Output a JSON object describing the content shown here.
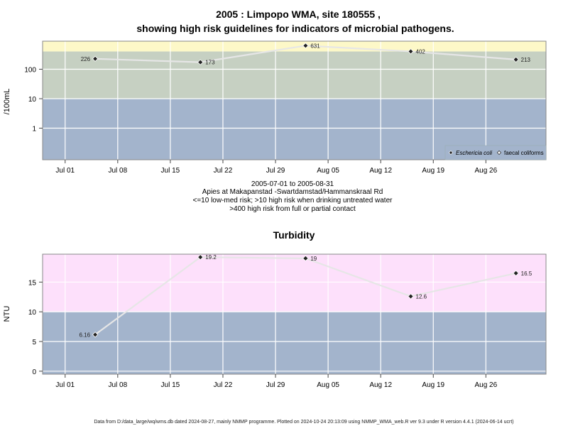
{
  "chart_data": [
    {
      "type": "line",
      "title": "2005 : Limpopo WMA, site 180555 ,",
      "subtitle": "showing high risk guidelines for indicators of microbial pathogens.",
      "ylabel": "/100mL",
      "y_scale": "log",
      "y_ticks": [
        1,
        10,
        100
      ],
      "x_ticks": [
        "Jul 01",
        "Jul 08",
        "Jul 15",
        "Jul 22",
        "Jul 29",
        "Aug 05",
        "Aug 12",
        "Aug 19",
        "Aug 26"
      ],
      "x_tick_dates": [
        "2005-07-01",
        "2005-07-08",
        "2005-07-15",
        "2005-07-22",
        "2005-07-29",
        "2005-08-05",
        "2005-08-12",
        "2005-08-19",
        "2005-08-26"
      ],
      "xlim": [
        "2005-06-28",
        "2005-09-03"
      ],
      "bands": [
        {
          "from": 0.05,
          "to": 10,
          "color": "#a3b4cc"
        },
        {
          "from": 10,
          "to": 400,
          "color": "#c6d0c2"
        },
        {
          "from": 400,
          "to": 900,
          "color": "#fdf8c8"
        }
      ],
      "series": [
        {
          "name": "Eschericia coli",
          "marker": "filled-diamond",
          "x": [
            "2005-07-05",
            "2005-07-19",
            "2005-08-02",
            "2005-08-16",
            "2005-08-30"
          ],
          "y": [
            226,
            173,
            631,
            402,
            213
          ],
          "labels": [
            "226",
            "173",
            "631",
            "402",
            "213"
          ]
        }
      ],
      "legend": {
        "placement": "bottom-right",
        "entries": [
          {
            "label": "Eschericia coli",
            "italic": true,
            "marker": "filled-diamond"
          },
          {
            "label": "faecal coliforms",
            "italic": false,
            "marker": "open-diamond"
          }
        ]
      },
      "notes": [
        "2005-07-01 to 2005-08-31",
        "Apies at Makapanstad -Swartdamstad/Hammanskraal Rd",
        "<=10 low-med risk; >10 high risk when drinking untreated water",
        ">400 high risk from full or partial contact"
      ]
    },
    {
      "type": "line",
      "title": "Turbidity",
      "ylabel": "NTU",
      "y_ticks": [
        0,
        5,
        10,
        15
      ],
      "ylim": [
        -0.5,
        19.7
      ],
      "x_ticks": [
        "Jul 01",
        "Jul 08",
        "Jul 15",
        "Jul 22",
        "Jul 29",
        "Aug 05",
        "Aug 12",
        "Aug 19",
        "Aug 26"
      ],
      "x_tick_dates": [
        "2005-07-01",
        "2005-07-08",
        "2005-07-15",
        "2005-07-22",
        "2005-07-29",
        "2005-08-05",
        "2005-08-12",
        "2005-08-19",
        "2005-08-26"
      ],
      "xlim": [
        "2005-06-28",
        "2005-09-03"
      ],
      "bands": [
        {
          "from": -0.5,
          "to": 10,
          "color": "#a3b4cc"
        },
        {
          "from": 10,
          "to": 19.7,
          "color": "#fde0fb"
        }
      ],
      "series": [
        {
          "marker": "filled-diamond",
          "x": [
            "2005-07-05",
            "2005-07-19",
            "2005-08-02",
            "2005-08-16",
            "2005-08-30"
          ],
          "y": [
            6.16,
            19.2,
            19,
            12.6,
            16.5
          ],
          "labels": [
            "6.16",
            "19.2",
            "19",
            "12.6",
            "16.5"
          ]
        }
      ]
    }
  ],
  "footer": "Data from D:/data_large/wq/wms.db dated 2024-08-27, mainly NMMP programme. Plotted on 2024-10-24 20:13:09 using NMMP_WMA_web.R ver 9.3 under R version 4.4.1 (2024-06-14 ucrt)"
}
